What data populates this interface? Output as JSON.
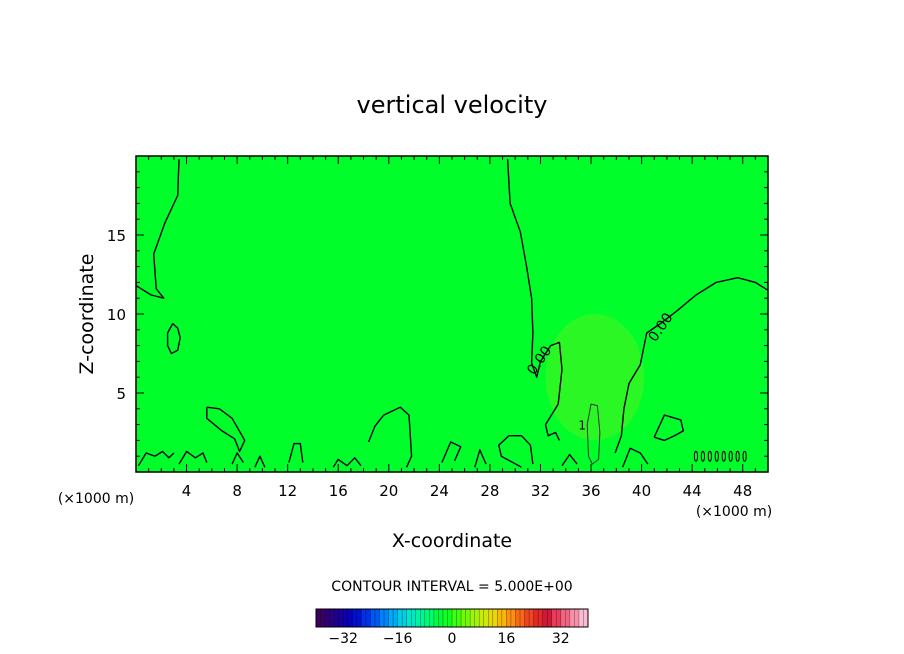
{
  "chart_data": {
    "type": "heatmap",
    "title": "vertical velocity",
    "xlabel": "X-coordinate",
    "ylabel": "Z-coordinate",
    "x_unit": "(×1000 m)",
    "y_unit": "(×1000 m)",
    "xlim": [
      0,
      50
    ],
    "ylim": [
      0,
      20
    ],
    "x_ticks": [
      4,
      8,
      12,
      16,
      20,
      24,
      28,
      32,
      36,
      40,
      44,
      48
    ],
    "y_ticks": [
      5,
      10,
      15
    ],
    "x_tick_labels": [
      "4",
      "8",
      "12",
      "16",
      "20",
      "24",
      "28",
      "32",
      "36",
      "40",
      "44",
      "48"
    ],
    "y_tick_labels": [
      "5",
      "10",
      "15"
    ],
    "field_color": "#00ff2a",
    "contour_labels": [
      {
        "text": "0.00",
        "x": 32.2,
        "y": 6.9
      },
      {
        "text": "0.00",
        "x": 41.8,
        "y": 9.0
      },
      {
        "text": "1",
        "x": 35.3,
        "y": 2.7
      }
    ],
    "contours": [
      [
        [
          3.4,
          19.8
        ],
        [
          3.3,
          17.5
        ],
        [
          2.3,
          15.8
        ],
        [
          1.4,
          13.8
        ],
        [
          1.6,
          11.6
        ],
        [
          2.2,
          11.0
        ],
        [
          1.2,
          11.2
        ],
        [
          0,
          11.8
        ]
      ],
      [
        [
          2.9,
          9.4
        ],
        [
          3.3,
          9.1
        ],
        [
          3.5,
          8.5
        ],
        [
          3.3,
          7.7
        ],
        [
          2.8,
          7.5
        ],
        [
          2.5,
          8.0
        ],
        [
          2.5,
          8.8
        ],
        [
          2.9,
          9.4
        ]
      ],
      [
        [
          5.6,
          4.1
        ],
        [
          6.6,
          4.0
        ],
        [
          7.6,
          3.4
        ],
        [
          8.6,
          2.0
        ],
        [
          8.2,
          1.3
        ],
        [
          7.8,
          2.1
        ],
        [
          6.8,
          2.6
        ],
        [
          5.6,
          3.4
        ],
        [
          5.6,
          4.1
        ]
      ],
      [
        [
          18.4,
          1.9
        ],
        [
          18.9,
          2.9
        ],
        [
          19.6,
          3.6
        ],
        [
          20.9,
          4.1
        ],
        [
          21.6,
          3.6
        ],
        [
          21.8,
          1.0
        ],
        [
          21.4,
          0.3
        ]
      ],
      [
        [
          29.4,
          19.8
        ],
        [
          29.6,
          17.0
        ],
        [
          30.4,
          15.2
        ],
        [
          30.9,
          13.0
        ],
        [
          31.3,
          11.0
        ],
        [
          31.4,
          8.8
        ],
        [
          31.3,
          6.9
        ],
        [
          31.7,
          6.0
        ],
        [
          32.0,
          7.0
        ],
        [
          32.8,
          8.0
        ],
        [
          33.5,
          8.2
        ],
        [
          33.7,
          6.5
        ],
        [
          33.4,
          4.3
        ],
        [
          32.4,
          3.0
        ],
        [
          32.6,
          2.3
        ],
        [
          33.2,
          2.5
        ],
        [
          33.5,
          2.0
        ]
      ],
      [
        [
          35.8,
          1.0
        ],
        [
          35.7,
          3.0
        ],
        [
          36.0,
          4.3
        ],
        [
          36.5,
          4.2
        ],
        [
          36.7,
          2.5
        ],
        [
          36.6,
          0.8
        ],
        [
          36.1,
          0.5
        ],
        [
          35.8,
          1.0
        ]
      ],
      [
        [
          37.9,
          1.2
        ],
        [
          38.4,
          2.3
        ],
        [
          38.6,
          4.0
        ],
        [
          39.0,
          5.6
        ],
        [
          39.9,
          6.8
        ],
        [
          40.4,
          8.8
        ],
        [
          41.5,
          9.4
        ],
        [
          42.8,
          10.2
        ],
        [
          44.3,
          11.2
        ],
        [
          45.9,
          12.0
        ],
        [
          47.6,
          12.3
        ],
        [
          49.0,
          12.0
        ],
        [
          50.0,
          11.5
        ]
      ],
      [
        [
          41.0,
          2.2
        ],
        [
          41.8,
          3.6
        ],
        [
          43.1,
          3.3
        ],
        [
          43.3,
          2.6
        ],
        [
          42.6,
          2.3
        ],
        [
          41.8,
          2.0
        ],
        [
          41.0,
          2.2
        ]
      ],
      [
        [
          30.5,
          0.3
        ],
        [
          28.9,
          1.0
        ],
        [
          28.7,
          1.7
        ],
        [
          29.5,
          2.3
        ],
        [
          30.5,
          2.3
        ],
        [
          31.2,
          1.7
        ],
        [
          31.4,
          0.5
        ]
      ],
      [
        [
          24.2,
          0.6
        ],
        [
          24.9,
          1.9
        ],
        [
          25.7,
          1.6
        ],
        [
          25.2,
          0.7
        ]
      ],
      [
        [
          12.1,
          0.6
        ],
        [
          12.5,
          1.8
        ],
        [
          13.0,
          1.8
        ],
        [
          13.2,
          0.6
        ]
      ],
      [
        [
          0.2,
          0.4
        ],
        [
          0.8,
          1.2
        ],
        [
          1.5,
          1.0
        ],
        [
          2.1,
          1.3
        ],
        [
          2.6,
          0.9
        ],
        [
          3.0,
          1.2
        ]
      ],
      [
        [
          3.4,
          0.5
        ],
        [
          4.0,
          1.3
        ],
        [
          4.7,
          0.9
        ],
        [
          5.3,
          1.2
        ],
        [
          5.6,
          0.6
        ]
      ],
      [
        [
          7.6,
          0.5
        ],
        [
          8.0,
          1.2
        ],
        [
          8.5,
          0.6
        ]
      ],
      [
        [
          9.4,
          0.3
        ],
        [
          9.8,
          1.0
        ],
        [
          10.2,
          0.3
        ]
      ],
      [
        [
          15.6,
          0.3
        ],
        [
          16.0,
          0.8
        ],
        [
          16.7,
          0.4
        ],
        [
          17.3,
          0.9
        ],
        [
          17.8,
          0.4
        ]
      ],
      [
        [
          26.8,
          0.3
        ],
        [
          27.2,
          1.4
        ],
        [
          27.7,
          0.5
        ]
      ],
      [
        [
          33.7,
          0.4
        ],
        [
          34.3,
          1.1
        ],
        [
          34.9,
          0.5
        ]
      ],
      [
        [
          38.5,
          0.3
        ],
        [
          39.1,
          1.5
        ],
        [
          39.9,
          1.2
        ],
        [
          40.5,
          0.5
        ]
      ]
    ],
    "colorbar": {
      "label": "CONTOUR INTERVAL = 5.000E+00",
      "range": [
        -40,
        40
      ],
      "ticks": [
        -32,
        -16,
        0,
        16,
        32
      ],
      "tick_labels": [
        "−32",
        "−16",
        "0",
        "16",
        "32"
      ],
      "colors": [
        "#3a0060",
        "#2c007a",
        "#1a0096",
        "#0a00b4",
        "#0010d0",
        "#0030e8",
        "#0058f4",
        "#0082f8",
        "#00aaf4",
        "#00cee4",
        "#00e8c8",
        "#00f4a0",
        "#00fa70",
        "#00fc40",
        "#10fe20",
        "#40fe10",
        "#70fa08",
        "#a0f408",
        "#c8ec08",
        "#e8d808",
        "#f8b808",
        "#fc9010",
        "#f86818",
        "#f04420",
        "#e02828",
        "#d01838",
        "#e83c5c",
        "#f06480",
        "#f890a8",
        "#fcbcd0"
      ]
    }
  }
}
